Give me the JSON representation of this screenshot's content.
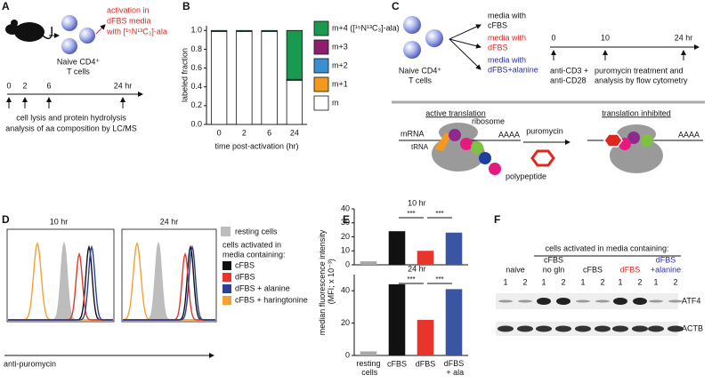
{
  "panel_labels": [
    "A",
    "B",
    "C",
    "D",
    "E",
    "F"
  ],
  "panel_a": {
    "condition": [
      "activation in",
      "dFBS media",
      "with [¹⁵N¹³C₃]-ala"
    ],
    "cells": [
      "Naive CD4⁺",
      "T cells"
    ],
    "timeline": [
      "0",
      "2",
      "6",
      "24 hr"
    ],
    "readout": [
      "cell lysis and protein hydrolysis",
      "analysis of aa composition by LC/MS"
    ]
  },
  "chart_data": [
    {
      "type": "bar",
      "stacked": true,
      "ylabel": "labeled fraction",
      "xlabel": "time post-activation (hr)",
      "categories": [
        "0",
        "2",
        "6",
        "24"
      ],
      "series": [
        {
          "name": "m",
          "color": "#ffffff",
          "values": [
            0.99,
            0.99,
            0.99,
            0.47
          ]
        },
        {
          "name": "m+1",
          "color": "#f39a1e",
          "values": [
            0,
            0,
            0,
            0.01
          ]
        },
        {
          "name": "m+2",
          "color": "#3a8fd0",
          "values": [
            0,
            0,
            0,
            0
          ]
        },
        {
          "name": "m+3",
          "color": "#8e1f6f",
          "values": [
            0,
            0,
            0,
            0
          ]
        },
        {
          "name": "m+4 ([¹⁵N¹³C₃]-ala)",
          "color": "#1a9a50",
          "values": [
            0.01,
            0.01,
            0.01,
            0.52
          ]
        }
      ],
      "ylim": [
        0,
        1.05
      ],
      "yticks": [
        {
          "value": 0,
          "label": "0.0"
        },
        0.2,
        0.4,
        0.6,
        0.8,
        {
          "value": 1,
          "label": "1.0"
        }
      ]
    },
    {
      "type": "bar",
      "title": "10 hr",
      "ylabel": "median fluorescence intensity (MFI; x 10⁻³)",
      "categories": [
        null,
        null,
        null,
        null
      ],
      "values": [
        2.5,
        24,
        10,
        23
      ],
      "colors": [
        "#a8a8a8",
        "#111111",
        "#e8342a",
        "#3a55a4"
      ],
      "ylim": [
        0,
        40
      ],
      "yticks": [
        0,
        10,
        20,
        30,
        40
      ],
      "annotations": [
        "***",
        "***"
      ]
    },
    {
      "type": "bar",
      "title": "24 hr",
      "categories": [
        "resting cells",
        "cFBS",
        "dFBS",
        "dFBS + ala"
      ],
      "values": [
        2.5,
        44,
        22,
        41
      ],
      "colors": [
        "#a8a8a8",
        "#111111",
        "#e8342a",
        "#3a55a4"
      ],
      "ylim": [
        0,
        50
      ],
      "yticks": [
        0,
        20,
        40
      ],
      "annotations": [
        "***",
        "***"
      ]
    }
  ],
  "panel_c": {
    "cells": [
      "Naive CD4⁺",
      "T cells"
    ],
    "media": [
      [
        "media with",
        "cFBS"
      ],
      [
        "media with",
        "dFBS"
      ],
      [
        "media with",
        "dFBS+alanine"
      ]
    ],
    "timeline": [
      "0",
      "10",
      "24 hr"
    ],
    "stimulus": [
      "anti-CD3 +",
      "anti-CD28"
    ],
    "readout": [
      "puromycin treatment and",
      "analysis by flow cytometry"
    ],
    "active": {
      "title": "active translation",
      "ribosome": "ribosome",
      "mrna": "mRNA",
      "trna": "tRNA",
      "polya": "AAAA",
      "polypeptide": "polypeptide"
    },
    "drug": "puromycin",
    "inhibited": {
      "title": "translation inhibited",
      "polya": "AAAA"
    }
  },
  "panel_d": {
    "times": [
      "10 hr",
      "24 hr"
    ],
    "legend_resting": "resting cells",
    "resting_color": "#bdbdbd",
    "legend_heading": [
      "cells activated in",
      "media containing:"
    ],
    "conditions": [
      {
        "name": "cFBS",
        "color": "#111111"
      },
      {
        "name": "dFBS",
        "color": "#e8342a"
      },
      {
        "name": "dFBS + alanine",
        "color": "#2d3f99"
      },
      {
        "name": "cFBS + haringtonine",
        "color": "#f5a033"
      }
    ],
    "xlabel": "anti-puromycin"
  },
  "panel_f": {
    "heading": "cells activated in media containing:",
    "groups": [
      [
        "naive"
      ],
      [
        "cFBS",
        "no gln"
      ],
      [
        "cFBS"
      ],
      [
        "dFBS"
      ],
      [
        "dFBS",
        "+alanine"
      ]
    ],
    "lanes": [
      "1",
      "2"
    ],
    "proteins": [
      "ATF4",
      "ACTB"
    ]
  }
}
